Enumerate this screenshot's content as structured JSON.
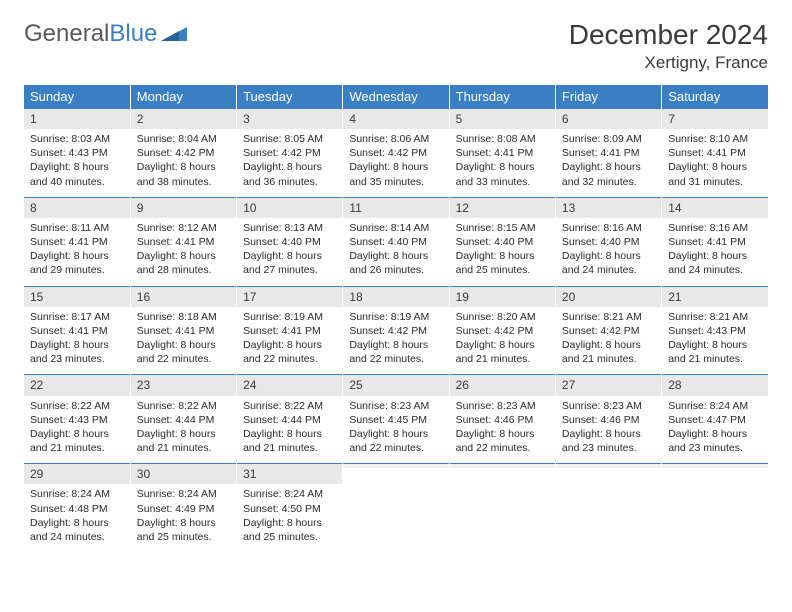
{
  "logo": {
    "text1": "General",
    "text2": "Blue"
  },
  "title": "December 2024",
  "location": "Xertigny, France",
  "colors": {
    "header_bg": "#3a7fc4",
    "header_text": "#ffffff",
    "daynum_bg": "#e8e8e8",
    "row_border": "#3a7fc4",
    "page_bg": "#ffffff",
    "text": "#333333"
  },
  "weekdays": [
    "Sunday",
    "Monday",
    "Tuesday",
    "Wednesday",
    "Thursday",
    "Friday",
    "Saturday"
  ],
  "weeks": [
    [
      {
        "n": "1",
        "sr": "Sunrise: 8:03 AM",
        "ss": "Sunset: 4:43 PM",
        "d1": "Daylight: 8 hours",
        "d2": "and 40 minutes."
      },
      {
        "n": "2",
        "sr": "Sunrise: 8:04 AM",
        "ss": "Sunset: 4:42 PM",
        "d1": "Daylight: 8 hours",
        "d2": "and 38 minutes."
      },
      {
        "n": "3",
        "sr": "Sunrise: 8:05 AM",
        "ss": "Sunset: 4:42 PM",
        "d1": "Daylight: 8 hours",
        "d2": "and 36 minutes."
      },
      {
        "n": "4",
        "sr": "Sunrise: 8:06 AM",
        "ss": "Sunset: 4:42 PM",
        "d1": "Daylight: 8 hours",
        "d2": "and 35 minutes."
      },
      {
        "n": "5",
        "sr": "Sunrise: 8:08 AM",
        "ss": "Sunset: 4:41 PM",
        "d1": "Daylight: 8 hours",
        "d2": "and 33 minutes."
      },
      {
        "n": "6",
        "sr": "Sunrise: 8:09 AM",
        "ss": "Sunset: 4:41 PM",
        "d1": "Daylight: 8 hours",
        "d2": "and 32 minutes."
      },
      {
        "n": "7",
        "sr": "Sunrise: 8:10 AM",
        "ss": "Sunset: 4:41 PM",
        "d1": "Daylight: 8 hours",
        "d2": "and 31 minutes."
      }
    ],
    [
      {
        "n": "8",
        "sr": "Sunrise: 8:11 AM",
        "ss": "Sunset: 4:41 PM",
        "d1": "Daylight: 8 hours",
        "d2": "and 29 minutes."
      },
      {
        "n": "9",
        "sr": "Sunrise: 8:12 AM",
        "ss": "Sunset: 4:41 PM",
        "d1": "Daylight: 8 hours",
        "d2": "and 28 minutes."
      },
      {
        "n": "10",
        "sr": "Sunrise: 8:13 AM",
        "ss": "Sunset: 4:40 PM",
        "d1": "Daylight: 8 hours",
        "d2": "and 27 minutes."
      },
      {
        "n": "11",
        "sr": "Sunrise: 8:14 AM",
        "ss": "Sunset: 4:40 PM",
        "d1": "Daylight: 8 hours",
        "d2": "and 26 minutes."
      },
      {
        "n": "12",
        "sr": "Sunrise: 8:15 AM",
        "ss": "Sunset: 4:40 PM",
        "d1": "Daylight: 8 hours",
        "d2": "and 25 minutes."
      },
      {
        "n": "13",
        "sr": "Sunrise: 8:16 AM",
        "ss": "Sunset: 4:40 PM",
        "d1": "Daylight: 8 hours",
        "d2": "and 24 minutes."
      },
      {
        "n": "14",
        "sr": "Sunrise: 8:16 AM",
        "ss": "Sunset: 4:41 PM",
        "d1": "Daylight: 8 hours",
        "d2": "and 24 minutes."
      }
    ],
    [
      {
        "n": "15",
        "sr": "Sunrise: 8:17 AM",
        "ss": "Sunset: 4:41 PM",
        "d1": "Daylight: 8 hours",
        "d2": "and 23 minutes."
      },
      {
        "n": "16",
        "sr": "Sunrise: 8:18 AM",
        "ss": "Sunset: 4:41 PM",
        "d1": "Daylight: 8 hours",
        "d2": "and 22 minutes."
      },
      {
        "n": "17",
        "sr": "Sunrise: 8:19 AM",
        "ss": "Sunset: 4:41 PM",
        "d1": "Daylight: 8 hours",
        "d2": "and 22 minutes."
      },
      {
        "n": "18",
        "sr": "Sunrise: 8:19 AM",
        "ss": "Sunset: 4:42 PM",
        "d1": "Daylight: 8 hours",
        "d2": "and 22 minutes."
      },
      {
        "n": "19",
        "sr": "Sunrise: 8:20 AM",
        "ss": "Sunset: 4:42 PM",
        "d1": "Daylight: 8 hours",
        "d2": "and 21 minutes."
      },
      {
        "n": "20",
        "sr": "Sunrise: 8:21 AM",
        "ss": "Sunset: 4:42 PM",
        "d1": "Daylight: 8 hours",
        "d2": "and 21 minutes."
      },
      {
        "n": "21",
        "sr": "Sunrise: 8:21 AM",
        "ss": "Sunset: 4:43 PM",
        "d1": "Daylight: 8 hours",
        "d2": "and 21 minutes."
      }
    ],
    [
      {
        "n": "22",
        "sr": "Sunrise: 8:22 AM",
        "ss": "Sunset: 4:43 PM",
        "d1": "Daylight: 8 hours",
        "d2": "and 21 minutes."
      },
      {
        "n": "23",
        "sr": "Sunrise: 8:22 AM",
        "ss": "Sunset: 4:44 PM",
        "d1": "Daylight: 8 hours",
        "d2": "and 21 minutes."
      },
      {
        "n": "24",
        "sr": "Sunrise: 8:22 AM",
        "ss": "Sunset: 4:44 PM",
        "d1": "Daylight: 8 hours",
        "d2": "and 21 minutes."
      },
      {
        "n": "25",
        "sr": "Sunrise: 8:23 AM",
        "ss": "Sunset: 4:45 PM",
        "d1": "Daylight: 8 hours",
        "d2": "and 22 minutes."
      },
      {
        "n": "26",
        "sr": "Sunrise: 8:23 AM",
        "ss": "Sunset: 4:46 PM",
        "d1": "Daylight: 8 hours",
        "d2": "and 22 minutes."
      },
      {
        "n": "27",
        "sr": "Sunrise: 8:23 AM",
        "ss": "Sunset: 4:46 PM",
        "d1": "Daylight: 8 hours",
        "d2": "and 23 minutes."
      },
      {
        "n": "28",
        "sr": "Sunrise: 8:24 AM",
        "ss": "Sunset: 4:47 PM",
        "d1": "Daylight: 8 hours",
        "d2": "and 23 minutes."
      }
    ],
    [
      {
        "n": "29",
        "sr": "Sunrise: 8:24 AM",
        "ss": "Sunset: 4:48 PM",
        "d1": "Daylight: 8 hours",
        "d2": "and 24 minutes."
      },
      {
        "n": "30",
        "sr": "Sunrise: 8:24 AM",
        "ss": "Sunset: 4:49 PM",
        "d1": "Daylight: 8 hours",
        "d2": "and 25 minutes."
      },
      {
        "n": "31",
        "sr": "Sunrise: 8:24 AM",
        "ss": "Sunset: 4:50 PM",
        "d1": "Daylight: 8 hours",
        "d2": "and 25 minutes."
      },
      {
        "n": "",
        "sr": "",
        "ss": "",
        "d1": "",
        "d2": ""
      },
      {
        "n": "",
        "sr": "",
        "ss": "",
        "d1": "",
        "d2": ""
      },
      {
        "n": "",
        "sr": "",
        "ss": "",
        "d1": "",
        "d2": ""
      },
      {
        "n": "",
        "sr": "",
        "ss": "",
        "d1": "",
        "d2": ""
      }
    ]
  ]
}
